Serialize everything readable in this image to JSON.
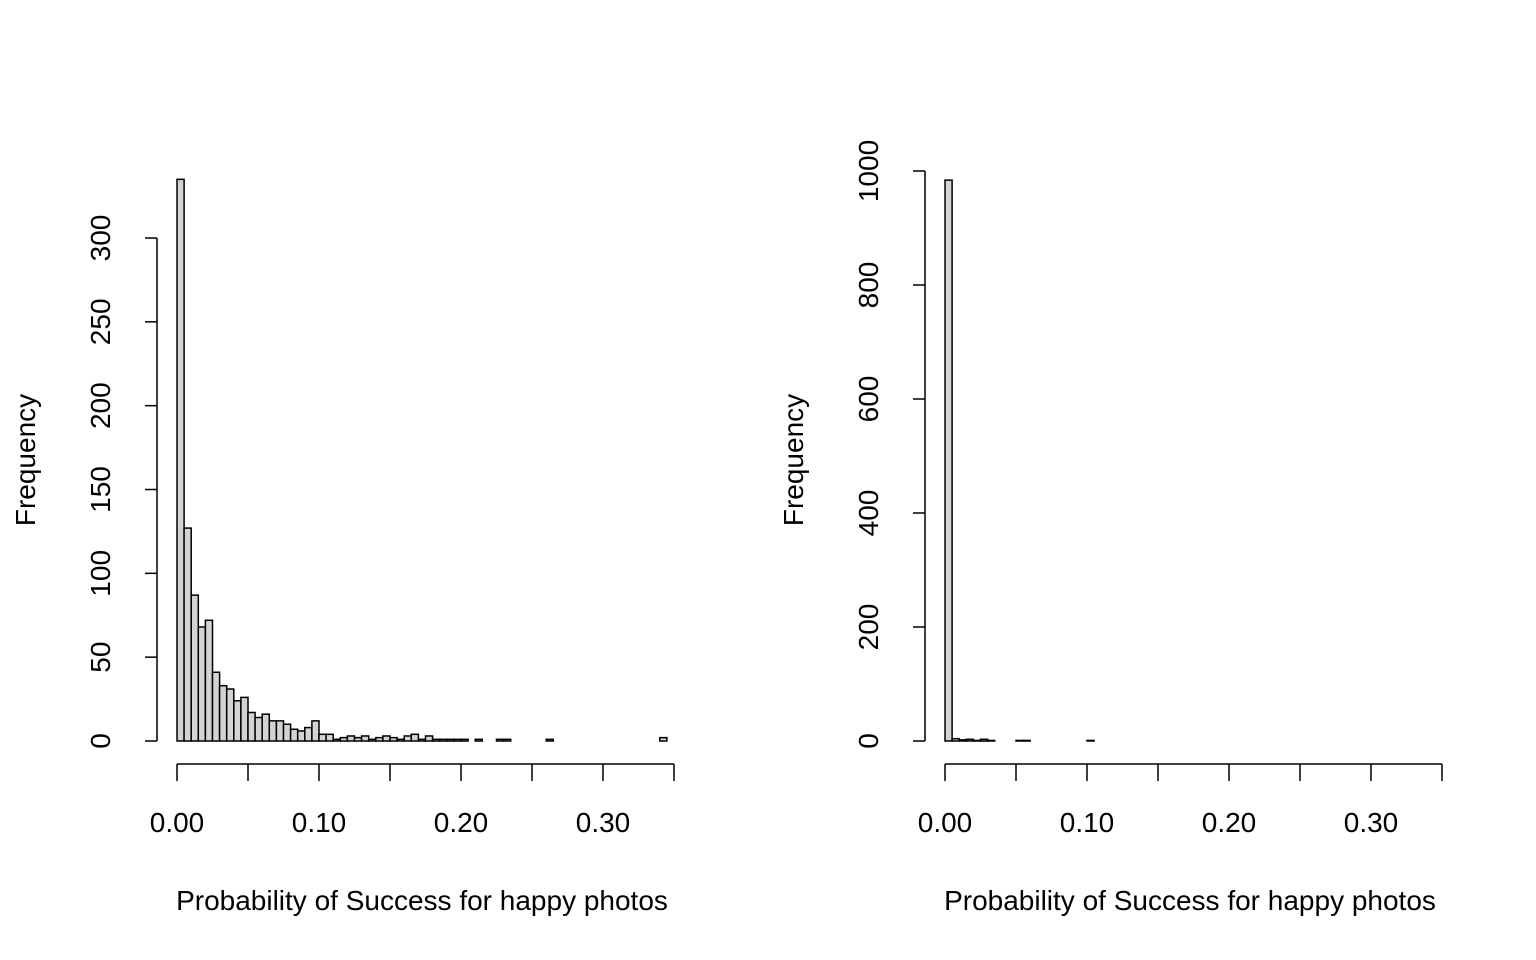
{
  "chart_data": [
    {
      "type": "bar",
      "subtype": "histogram",
      "title": "",
      "xlabel": "Probability of Success for happy photos",
      "ylabel": "Frequency",
      "bin_width": 0.005,
      "bin_start": 0.0,
      "values": [
        335,
        127,
        87,
        68,
        72,
        41,
        33,
        31,
        24,
        26,
        17,
        14,
        16,
        12,
        12,
        10,
        7,
        6,
        8,
        12,
        4,
        4,
        1,
        2,
        3,
        2,
        3,
        1,
        2,
        3,
        2,
        1,
        3,
        4,
        1,
        3,
        1,
        1,
        1,
        1,
        1,
        0,
        1,
        0,
        0,
        1,
        1,
        0,
        0,
        0,
        0,
        0,
        1,
        0,
        0,
        0,
        0,
        0,
        0,
        0,
        0,
        0,
        0,
        0,
        0,
        0,
        0,
        0,
        2
      ],
      "xlim": [
        0,
        0.35
      ],
      "ylim": [
        0,
        335
      ],
      "xticks": [
        0,
        0.05,
        0.1,
        0.15,
        0.2,
        0.25,
        0.3,
        0.35
      ],
      "xtick_labels": [
        "0.00",
        "0.10",
        "0.20",
        "0.30"
      ],
      "xtick_label_values": [
        0,
        0.1,
        0.2,
        0.3
      ],
      "yticks": [
        0,
        50,
        100,
        150,
        200,
        250,
        300
      ],
      "ytick_labels": [
        "0",
        "50",
        "100",
        "150",
        "200",
        "250",
        "300"
      ],
      "bar_fill": "#d3d3d3",
      "grid": false
    },
    {
      "type": "bar",
      "subtype": "histogram",
      "title": "",
      "xlabel": "Probability of Success for happy photos",
      "ylabel": "Frequency",
      "bin_width": 0.005,
      "bin_start": 0.0,
      "values": [
        984,
        4,
        2,
        3,
        1,
        3,
        1,
        0,
        0,
        0,
        1,
        1,
        0,
        0,
        0,
        0,
        0,
        0,
        0,
        0,
        1,
        0,
        0,
        0,
        0,
        0,
        0,
        0,
        0,
        0,
        0,
        0,
        0,
        0,
        0,
        0,
        0,
        0,
        0,
        0,
        0,
        0,
        0,
        0,
        0,
        0,
        0,
        0,
        0,
        0,
        0,
        0,
        0,
        0,
        0,
        0,
        0,
        0,
        0,
        0,
        0,
        0,
        0,
        0,
        0,
        0,
        0,
        0,
        0
      ],
      "xlim": [
        0,
        0.35
      ],
      "ylim": [
        0,
        1000
      ],
      "xticks": [
        0,
        0.05,
        0.1,
        0.15,
        0.2,
        0.25,
        0.3,
        0.35
      ],
      "xtick_labels": [
        "0.00",
        "0.10",
        "0.20",
        "0.30"
      ],
      "xtick_label_values": [
        0,
        0.1,
        0.2,
        0.3
      ],
      "yticks": [
        0,
        200,
        400,
        600,
        800,
        1000
      ],
      "ytick_labels": [
        "0",
        "200",
        "400",
        "600",
        "800",
        "1000"
      ],
      "bar_fill": "#d3d3d3",
      "grid": false
    }
  ]
}
